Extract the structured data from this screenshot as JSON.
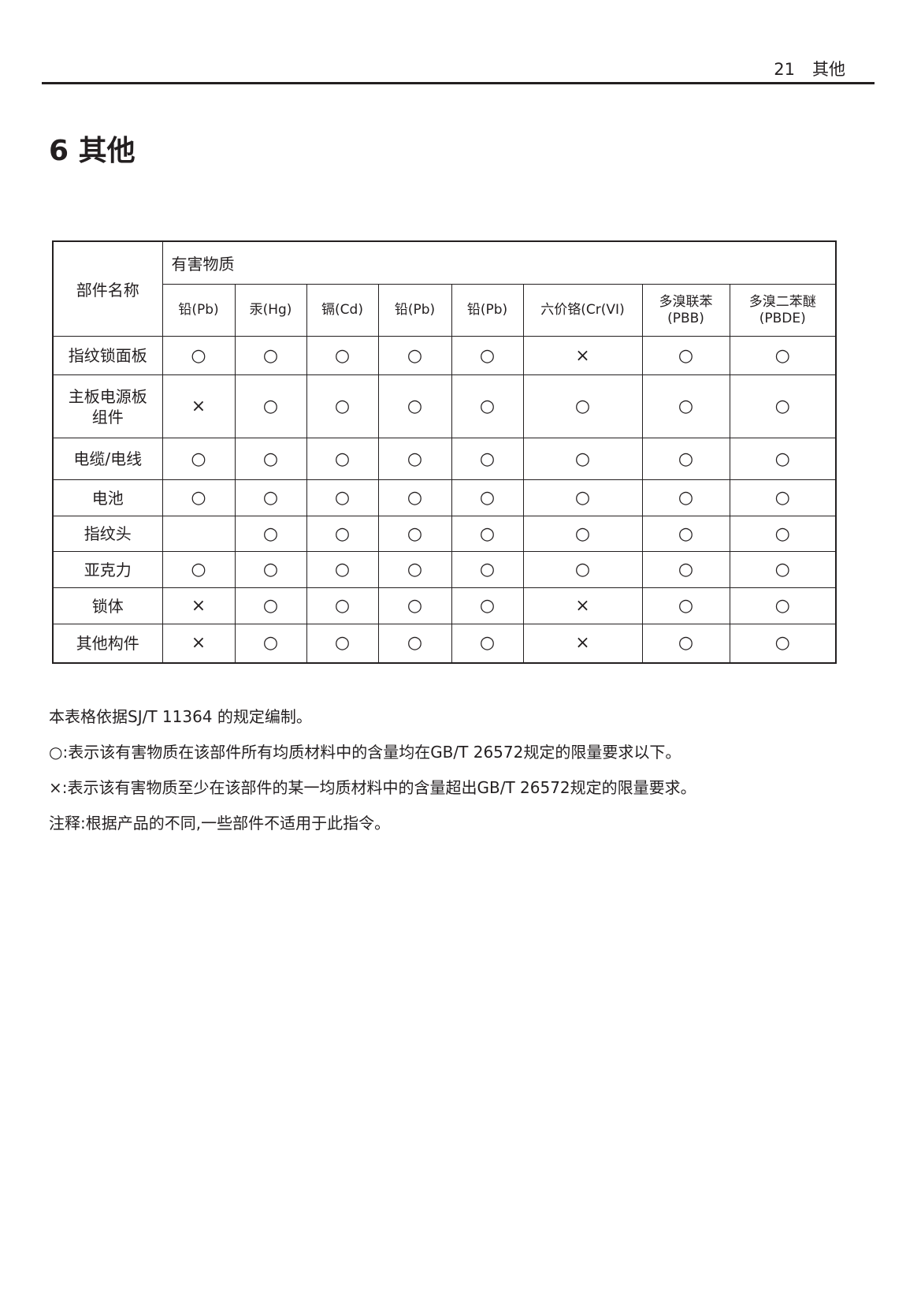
{
  "header": {
    "page_number": "21",
    "section": "其他"
  },
  "title": "6 其他",
  "table": {
    "part_header": "部件名称",
    "group_header": "有害物质",
    "columns": [
      "铅(Pb)",
      "汞(Hg)",
      "镉(Cd)",
      "铅(Pb)",
      "铅(Pb)",
      "六价铬(Cr(VI)",
      [
        "多溴联苯",
        "(PBB)"
      ],
      [
        "多溴二苯醚",
        "(PBDE)"
      ]
    ],
    "rows": [
      {
        "part": [
          "指纹锁面板"
        ],
        "marks": [
          "○",
          "○",
          "○",
          "○",
          "○",
          "×",
          "○",
          "○"
        ]
      },
      {
        "part": [
          "主板电源板",
          "组件"
        ],
        "marks": [
          "×",
          "○",
          "○",
          "○",
          "○",
          "○",
          "○",
          "○"
        ]
      },
      {
        "part": [
          "电缆/电线"
        ],
        "marks": [
          "○",
          "○",
          "○",
          "○",
          "○",
          "○",
          "○",
          "○"
        ]
      },
      {
        "part": [
          "电池"
        ],
        "marks": [
          "○",
          "○",
          "○",
          "○",
          "○",
          "○",
          "○",
          "○"
        ]
      },
      {
        "part": [
          "指纹头"
        ],
        "marks": [
          "",
          "○",
          "○",
          "○",
          "○",
          "○",
          "○",
          "○"
        ]
      },
      {
        "part": [
          "亚克力"
        ],
        "marks": [
          "○",
          "○",
          "○",
          "○",
          "○",
          "○",
          "○",
          "○"
        ]
      },
      {
        "part": [
          "锁体"
        ],
        "marks": [
          "×",
          "○",
          "○",
          "○",
          "○",
          "×",
          "○",
          "○"
        ]
      },
      {
        "part": [
          "其他构件"
        ],
        "marks": [
          "×",
          "○",
          "○",
          "○",
          "○",
          "×",
          "○",
          "○"
        ]
      }
    ]
  },
  "notes": [
    "本表格依据SJ/T 11364 的规定编制。",
    "○:表示该有害物质在该部件所有均质材料中的含量均在GB/T 26572规定的限量要求以下。",
    "×:表示该有害物质至少在该部件的某一均质材料中的含量超出GB/T 26572规定的限量要求。",
    "注释:根据产品的不同,一些部件不适用于此指令。"
  ]
}
